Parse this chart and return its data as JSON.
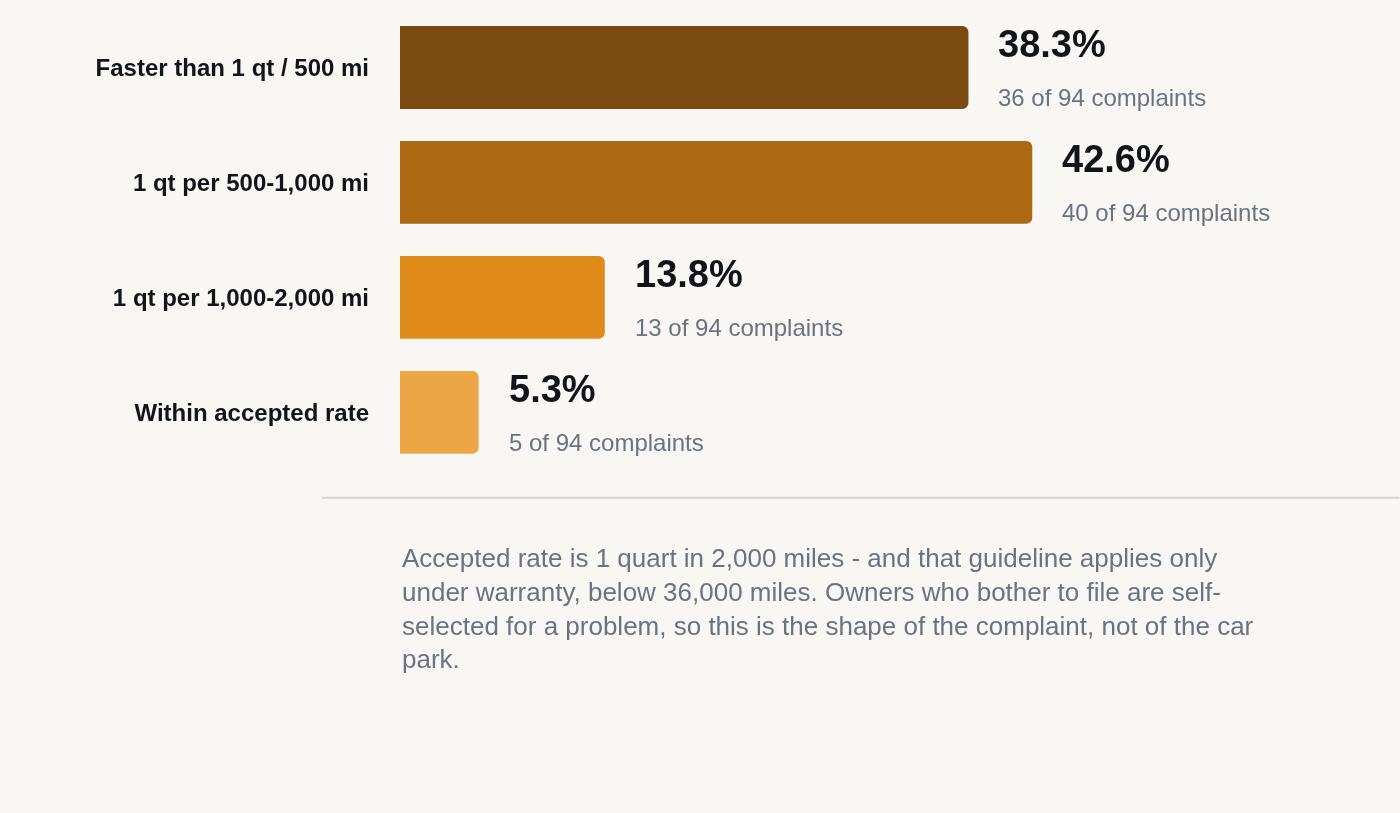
{
  "chart_data": {
    "type": "bar",
    "orientation": "horizontal",
    "categories": [
      "Faster than 1 qt / 500 mi",
      "1 qt per 500-1,000 mi",
      "1 qt per 1,000-2,000 mi",
      "Within accepted rate"
    ],
    "values": [
      38.3,
      42.6,
      13.8,
      5.3
    ],
    "colors": [
      "#7a4a0f",
      "#ad6912",
      "#e08b19",
      "#eca646"
    ],
    "value_labels": [
      "38.3%\n36 of 94 complaints",
      "42.6%\n40 of 94 complaints",
      "13.8%\n13 of 94 complaints",
      "5.3%\n5 of 94 complaints"
    ],
    "annotations": [
      "Accepted rate is 1 quart in 2,000 miles - and that guideline applies only under warranty, below 36,000 miles. Owners who bother to file are self-selected for a problem, so this is the shape of the complaint, not of the car park."
    ]
  }
}
